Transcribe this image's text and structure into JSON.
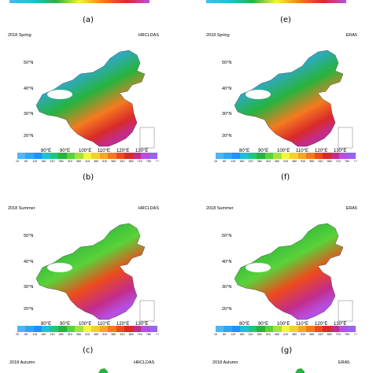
{
  "panels": [
    {
      "id": "b",
      "season": "2018 Spring",
      "source": "HRCLDAS",
      "letter": "(b)",
      "x_ticks": [
        "80°E",
        "90°E",
        "100°E",
        "110°E",
        "120°E",
        "130°E"
      ],
      "y_ticks": [
        "50°N",
        "40°N",
        "30°N",
        "20°N"
      ],
      "cbar": [
        "10",
        "60",
        "110",
        "160",
        "210",
        "260",
        "310",
        "360",
        "410",
        "460",
        "510",
        "560",
        "610",
        "660",
        "710",
        "760",
        "++"
      ]
    },
    {
      "id": "f",
      "season": "2018 Spring",
      "source": "ERA5",
      "letter": "(f)",
      "x_ticks": [
        "80°E",
        "90°E",
        "100°E",
        "110°E",
        "120°E",
        "130°E"
      ],
      "y_ticks": [
        "50°N",
        "40°N",
        "30°N",
        "20°N"
      ],
      "cbar": [
        "10",
        "60",
        "110",
        "160",
        "210",
        "260",
        "310",
        "360",
        "410",
        "460",
        "510",
        "560",
        "610",
        "660",
        "710",
        "760",
        "++"
      ]
    },
    {
      "id": "c",
      "season": "2018 Summer",
      "source": "HRCLDAS",
      "letter": "(c)",
      "x_ticks": [
        "80°E",
        "90°E",
        "100°E",
        "110°E",
        "120°E",
        "130°E"
      ],
      "y_ticks": [
        "50°N",
        "40°N",
        "30°N",
        "20°N"
      ],
      "cbar": [
        "10",
        "60",
        "110",
        "160",
        "210",
        "260",
        "310",
        "360",
        "410",
        "460",
        "510",
        "560",
        "610",
        "660",
        "710",
        "760",
        "++"
      ]
    },
    {
      "id": "g",
      "season": "2018 Summer",
      "source": "ERA5",
      "letter": "(g)",
      "x_ticks": [
        "80°E",
        "90°E",
        "100°E",
        "110°E",
        "120°E",
        "130°E"
      ],
      "y_ticks": [
        "50°N",
        "40°N",
        "30°N",
        "20°N"
      ],
      "cbar": [
        "10",
        "60",
        "110",
        "160",
        "210",
        "260",
        "310",
        "360",
        "410",
        "460",
        "510",
        "560",
        "610",
        "660",
        "710",
        "760",
        "++"
      ]
    }
  ],
  "top_letters": {
    "left": "(a)",
    "right": "(e)"
  },
  "bottom_row": {
    "left_season": "2018 Autumn",
    "left_source": "HRCLDAS",
    "right_season": "2018 Autumn",
    "right_source": "ERA5"
  },
  "colors": {
    "cbar": [
      "#4fb5f5",
      "#31a6f0",
      "#1e90ff",
      "#1ec0d6",
      "#20c77a",
      "#27b33d",
      "#5ad23a",
      "#a6e23c",
      "#f5f53a",
      "#f5d02a",
      "#f5a623",
      "#f57a1f",
      "#ee4a1d",
      "#d92a2a",
      "#c22c8c",
      "#b64fe0",
      "#9a62ee"
    ]
  }
}
